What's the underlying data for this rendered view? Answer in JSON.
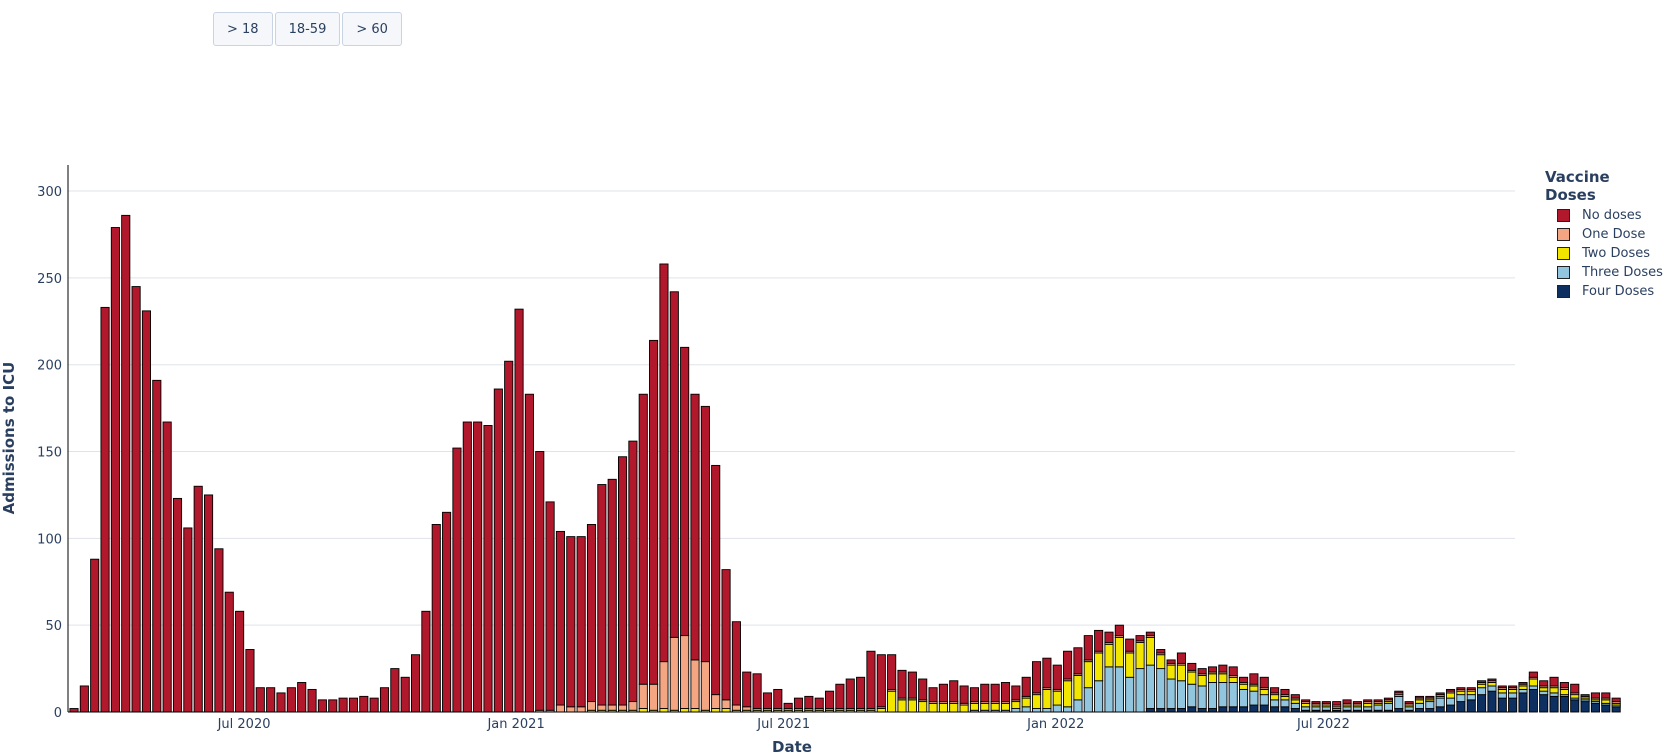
{
  "buttons": [
    {
      "label": "> 18"
    },
    {
      "label": "18-59"
    },
    {
      "label": "> 60"
    }
  ],
  "chart_data": {
    "type": "bar",
    "barmode": "stack",
    "xlabel": "Date",
    "ylabel": "Admissions to ICU",
    "ylim": [
      0,
      315
    ],
    "yticks": [
      0,
      50,
      100,
      150,
      200,
      250,
      300
    ],
    "x_start": "2020-03-08",
    "x_step_days": 7,
    "xticks": [
      {
        "label": "Jul 2020",
        "date": "2020-07-01"
      },
      {
        "label": "Jan 2021",
        "date": "2021-01-01"
      },
      {
        "label": "Jul 2021",
        "date": "2021-07-01"
      },
      {
        "label": "Jan 2022",
        "date": "2022-01-01"
      },
      {
        "label": "Jul 2022",
        "date": "2022-07-01"
      }
    ],
    "grid": true,
    "legend": {
      "title": "Vaccine Doses",
      "placement": "right"
    },
    "series": [
      {
        "name": "No doses",
        "color": "#b1182b",
        "values": [
          2,
          15,
          88,
          233,
          279,
          286,
          245,
          231,
          191,
          167,
          123,
          106,
          130,
          125,
          94,
          69,
          58,
          36,
          14,
          14,
          11,
          14,
          17,
          13,
          7,
          7,
          8,
          8,
          9,
          8,
          14,
          25,
          20,
          33,
          58,
          108,
          115,
          152,
          167,
          167,
          165,
          186,
          202,
          232,
          183,
          149,
          120,
          100,
          98,
          98,
          102,
          127,
          130,
          143,
          150,
          167,
          198,
          229,
          199,
          166,
          153,
          147,
          132,
          75,
          48,
          20,
          20,
          9,
          11,
          3,
          6,
          7,
          6,
          10,
          14,
          17,
          18,
          33,
          30,
          20,
          16,
          15,
          12,
          8,
          10,
          12,
          10,
          8,
          10,
          10,
          11,
          8,
          11,
          18,
          17,
          14,
          16,
          15,
          14,
          12,
          6,
          6,
          7,
          3,
          2,
          2,
          2,
          6,
          4,
          3,
          3,
          4,
          5,
          3,
          6,
          6,
          3,
          3,
          2,
          1,
          1,
          1,
          2,
          2,
          1,
          1,
          1,
          1,
          1,
          1,
          1,
          1,
          1,
          1,
          1,
          1,
          1,
          1,
          1,
          1,
          1,
          3,
          3,
          5,
          3,
          5,
          1,
          3,
          3,
          2
        ]
      },
      {
        "name": "One Dose",
        "color": "#f4a582",
        "values": [
          0,
          0,
          0,
          0,
          0,
          0,
          0,
          0,
          0,
          0,
          0,
          0,
          0,
          0,
          0,
          0,
          0,
          0,
          0,
          0,
          0,
          0,
          0,
          0,
          0,
          0,
          0,
          0,
          0,
          0,
          0,
          0,
          0,
          0,
          0,
          0,
          0,
          0,
          0,
          0,
          0,
          0,
          0,
          0,
          0,
          1,
          1,
          4,
          3,
          3,
          5,
          3,
          3,
          3,
          5,
          14,
          15,
          27,
          42,
          42,
          28,
          28,
          8,
          5,
          3,
          2,
          1,
          1,
          1,
          1,
          1,
          1,
          1,
          1,
          1,
          1,
          1,
          1,
          1,
          1,
          1,
          1,
          1,
          1,
          1,
          1,
          1,
          1,
          1,
          1,
          1,
          1,
          1,
          1,
          1,
          1,
          1,
          1,
          1,
          1,
          1,
          1,
          1,
          1,
          1,
          1,
          1,
          1,
          1,
          1,
          1,
          1,
          1,
          1,
          1,
          1,
          1,
          1,
          1,
          1,
          1,
          1,
          1,
          1,
          1,
          1,
          1,
          1,
          1,
          1,
          1,
          1,
          1,
          1,
          1,
          1,
          1,
          1,
          1,
          1,
          1,
          1,
          1,
          1,
          1,
          1,
          1,
          1,
          1,
          1
        ]
      },
      {
        "name": "Two Doses",
        "color": "#f2e600",
        "values": [
          0,
          0,
          0,
          0,
          0,
          0,
          0,
          0,
          0,
          0,
          0,
          0,
          0,
          0,
          0,
          0,
          0,
          0,
          0,
          0,
          0,
          0,
          0,
          0,
          0,
          0,
          0,
          0,
          0,
          0,
          0,
          0,
          0,
          0,
          0,
          0,
          0,
          0,
          0,
          0,
          0,
          0,
          0,
          0,
          0,
          0,
          0,
          0,
          0,
          0,
          1,
          1,
          1,
          1,
          1,
          2,
          1,
          2,
          1,
          2,
          2,
          1,
          2,
          2,
          1,
          1,
          1,
          1,
          1,
          1,
          1,
          1,
          1,
          1,
          1,
          1,
          1,
          1,
          2,
          12,
          7,
          7,
          6,
          5,
          5,
          5,
          4,
          4,
          4,
          4,
          4,
          4,
          5,
          8,
          11,
          8,
          15,
          14,
          15,
          16,
          13,
          17,
          14,
          15,
          16,
          8,
          8,
          9,
          7,
          6,
          5,
          5,
          3,
          3,
          3,
          3,
          3,
          2,
          2,
          2,
          1,
          1,
          1,
          1,
          1,
          2,
          1,
          1,
          1,
          1,
          2,
          1,
          1,
          3,
          2,
          2,
          2,
          2,
          2,
          2,
          2,
          4,
          2,
          3,
          3,
          2,
          1,
          1,
          2,
          1
        ]
      },
      {
        "name": "Three Doses",
        "color": "#92c5de",
        "values": [
          0,
          0,
          0,
          0,
          0,
          0,
          0,
          0,
          0,
          0,
          0,
          0,
          0,
          0,
          0,
          0,
          0,
          0,
          0,
          0,
          0,
          0,
          0,
          0,
          0,
          0,
          0,
          0,
          0,
          0,
          0,
          0,
          0,
          0,
          0,
          0,
          0,
          0,
          0,
          0,
          0,
          0,
          0,
          0,
          0,
          0,
          0,
          0,
          0,
          0,
          0,
          0,
          0,
          0,
          0,
          0,
          0,
          0,
          0,
          0,
          0,
          0,
          0,
          0,
          0,
          0,
          0,
          0,
          0,
          0,
          0,
          0,
          0,
          0,
          0,
          0,
          0,
          0,
          0,
          0,
          0,
          0,
          0,
          0,
          0,
          0,
          0,
          1,
          1,
          1,
          1,
          2,
          3,
          2,
          2,
          4,
          3,
          7,
          14,
          18,
          26,
          26,
          20,
          25,
          25,
          23,
          17,
          16,
          13,
          13,
          15,
          14,
          14,
          10,
          8,
          6,
          4,
          4,
          3,
          2,
          2,
          2,
          1,
          2,
          2,
          2,
          3,
          4,
          7,
          2,
          3,
          4,
          5,
          4,
          4,
          3,
          4,
          3,
          3,
          3,
          2,
          2,
          2,
          2,
          1,
          1,
          1,
          1,
          1,
          1
        ]
      },
      {
        "name": "Four Doses",
        "color": "#0d3060",
        "values": [
          0,
          0,
          0,
          0,
          0,
          0,
          0,
          0,
          0,
          0,
          0,
          0,
          0,
          0,
          0,
          0,
          0,
          0,
          0,
          0,
          0,
          0,
          0,
          0,
          0,
          0,
          0,
          0,
          0,
          0,
          0,
          0,
          0,
          0,
          0,
          0,
          0,
          0,
          0,
          0,
          0,
          0,
          0,
          0,
          0,
          0,
          0,
          0,
          0,
          0,
          0,
          0,
          0,
          0,
          0,
          0,
          0,
          0,
          0,
          0,
          0,
          0,
          0,
          0,
          0,
          0,
          0,
          0,
          0,
          0,
          0,
          0,
          0,
          0,
          0,
          0,
          0,
          0,
          0,
          0,
          0,
          0,
          0,
          0,
          0,
          0,
          0,
          0,
          0,
          0,
          0,
          0,
          0,
          0,
          0,
          0,
          0,
          0,
          0,
          0,
          0,
          0,
          0,
          0,
          2,
          2,
          2,
          2,
          3,
          2,
          2,
          3,
          3,
          3,
          4,
          4,
          3,
          3,
          2,
          1,
          1,
          1,
          1,
          1,
          1,
          1,
          1,
          1,
          2,
          1,
          2,
          2,
          3,
          4,
          6,
          7,
          10,
          12,
          8,
          8,
          11,
          13,
          10,
          9,
          9,
          7,
          6,
          5,
          4,
          3
        ]
      }
    ]
  }
}
